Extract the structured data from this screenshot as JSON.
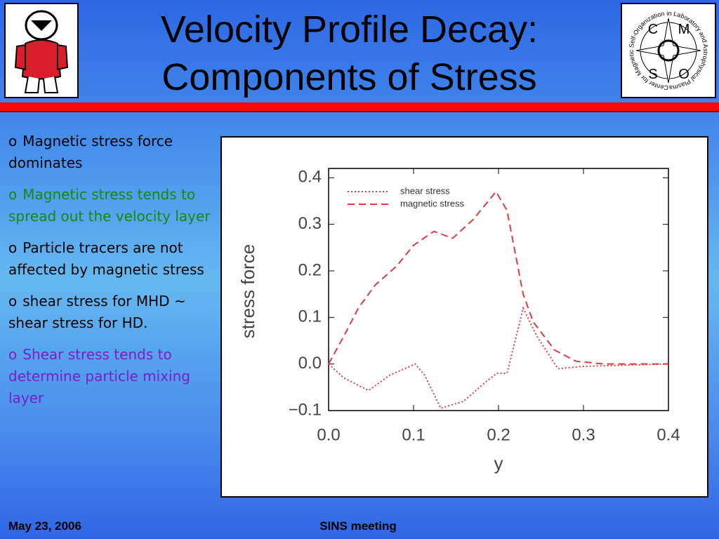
{
  "header": {
    "title_lines": [
      "Velocity Profile Decay:",
      "Components of Stress"
    ],
    "logo_ring_text": "Center for Magnetic Self-Organization in Laboratory and Astrophysical Plasmas",
    "logo_letters": [
      "C",
      "M",
      "S",
      "O"
    ]
  },
  "bullets": [
    {
      "marker": "o",
      "text": "Magnetic stress force dominates",
      "color": "#000000"
    },
    {
      "marker": "o",
      "text": "Magnetic stress tends to spread out the velocity layer",
      "color": "#138a13"
    },
    {
      "marker": "o",
      "text": "Particle tracers are not affected by magnetic stress",
      "color": "#000000"
    },
    {
      "marker": "o",
      "text": "shear stress for MHD ~ shear stress for HD.",
      "color": "#000000"
    },
    {
      "marker": "o",
      "text": "Shear stress tends to determine particle mixing layer",
      "color": "#7a1fc0"
    }
  ],
  "footer": {
    "date": "May 23, 2006",
    "event": "SINS meeting"
  },
  "chart_data": {
    "type": "line",
    "xlabel": "y",
    "ylabel": "stress force",
    "xlim": [
      0,
      0.4
    ],
    "ylim": [
      -0.1,
      0.42
    ],
    "xticks": [
      {
        "value": 0,
        "label": "0.0"
      },
      0.1,
      0.2,
      0.3,
      0.4
    ],
    "yticks": [
      {
        "value": -0.1,
        "label": "−0.1"
      },
      {
        "value": 0,
        "label": "0.0"
      },
      0.1,
      0.2,
      0.3,
      0.4
    ],
    "legend": "upper left",
    "series": [
      {
        "name": "shear stress",
        "color": "#e0393e",
        "dash": "dotted",
        "x": [
          0,
          0.018,
          0.047,
          0.072,
          0.102,
          0.113,
          0.132,
          0.159,
          0.184,
          0.198,
          0.21,
          0.229,
          0.245,
          0.27,
          0.3,
          0.4
        ],
        "values": [
          0,
          -0.03,
          -0.057,
          -0.024,
          0.0,
          -0.024,
          -0.095,
          -0.08,
          -0.04,
          -0.02,
          -0.02,
          0.12,
          0.06,
          -0.01,
          -0.005,
          0.0
        ]
      },
      {
        "name": "magnetic stress",
        "color": "#e0393e",
        "dash": "dashed",
        "x": [
          0,
          0.018,
          0.035,
          0.055,
          0.08,
          0.1,
          0.124,
          0.146,
          0.17,
          0.197,
          0.21,
          0.229,
          0.241,
          0.266,
          0.291,
          0.324,
          0.4
        ],
        "values": [
          0,
          0.06,
          0.12,
          0.17,
          0.21,
          0.255,
          0.285,
          0.27,
          0.31,
          0.37,
          0.33,
          0.15,
          0.09,
          0.03,
          0.006,
          0.0,
          0.0
        ]
      }
    ]
  }
}
